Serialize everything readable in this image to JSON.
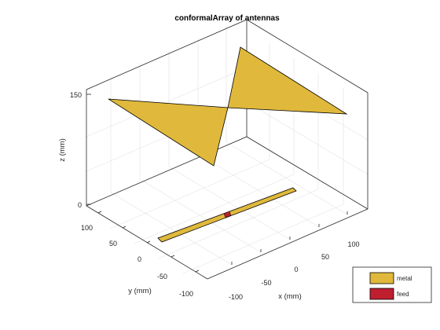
{
  "figure": {
    "title": "conformalArray of antennas",
    "x_label": "x (mm)",
    "y_label": "y (mm)",
    "z_label": "z (mm)",
    "x_ticks": [
      "-100",
      "-50",
      "0",
      "50",
      "100"
    ],
    "y_ticks": [
      "100",
      "50",
      "0",
      "-50",
      "-100"
    ],
    "z_ticks": [
      "150",
      "0"
    ]
  },
  "legend": {
    "items": [
      {
        "label": "metal",
        "color": "#e0b93c"
      },
      {
        "label": "feed",
        "color": "#bf1e2e"
      }
    ]
  },
  "colors": {
    "metal": "#e0b93c",
    "feed": "#bf1e2e",
    "edge": "#000000",
    "axis": "#262626",
    "grid": "#e3e3e3"
  }
}
